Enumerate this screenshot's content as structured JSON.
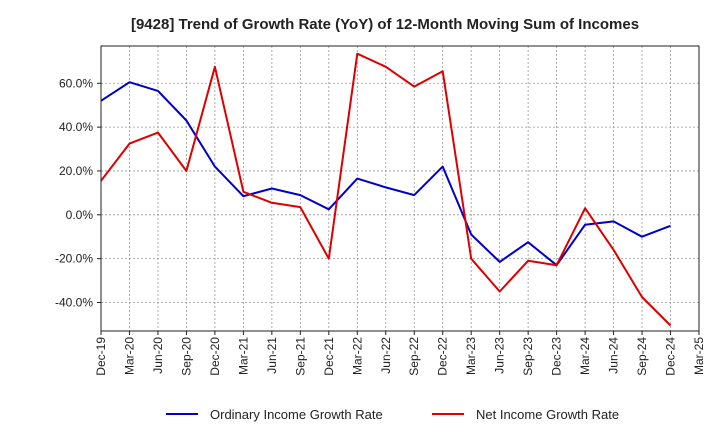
{
  "chart_data": {
    "type": "line",
    "title": "[9428]  Trend of Growth Rate (YoY) of 12-Month Moving Sum of Incomes",
    "xlabel": "",
    "ylabel": "",
    "x": [
      "Dec-19",
      "Mar-20",
      "Jun-20",
      "Sep-20",
      "Dec-20",
      "Mar-21",
      "Jun-21",
      "Sep-21",
      "Dec-21",
      "Mar-22",
      "Jun-22",
      "Sep-22",
      "Dec-22",
      "Mar-23",
      "Jun-23",
      "Sep-23",
      "Dec-23",
      "Mar-24",
      "Jun-24",
      "Sep-24",
      "Dec-24",
      "Mar-25"
    ],
    "x_tick_labels": [
      "Dec-19",
      "Mar-20",
      "Jun-20",
      "Sep-20",
      "Dec-20",
      "Mar-21",
      "Jun-21",
      "Sep-21",
      "Dec-21",
      "Mar-22",
      "Jun-22",
      "Sep-22",
      "Dec-22",
      "Mar-23",
      "Jun-23",
      "Sep-23",
      "Dec-23",
      "Mar-24",
      "Jun-24",
      "Sep-24",
      "Dec-24",
      "Mar-25"
    ],
    "y_ticks": [
      -40,
      -20,
      0,
      20,
      40,
      60
    ],
    "y_tick_labels": [
      "-40.0%",
      "-20.0%",
      "0.0%",
      "20.0%",
      "40.0%",
      "60.0%"
    ],
    "ylim": [
      -53,
      77
    ],
    "grid": true,
    "legend_position": "bottom",
    "series": [
      {
        "name": "Ordinary Income Growth Rate",
        "color": "#0000cc",
        "values": [
          52.0,
          60.5,
          56.5,
          43.0,
          22.0,
          8.5,
          12.0,
          9.0,
          2.5,
          16.5,
          12.5,
          9.0,
          22.0,
          -9.0,
          -21.5,
          -12.5,
          -23.0,
          -4.5,
          -3.0,
          -10.0,
          -5.0,
          null
        ]
      },
      {
        "name": "Net Income Growth Rate",
        "color": "#dd0000",
        "values": [
          15.5,
          32.5,
          37.5,
          20.0,
          67.5,
          10.5,
          5.5,
          3.5,
          -20.0,
          73.5,
          67.5,
          58.5,
          65.5,
          -20.0,
          -35.0,
          -21.0,
          -23.0,
          3.0,
          -16.0,
          -37.5,
          -50.5,
          null
        ]
      }
    ]
  }
}
